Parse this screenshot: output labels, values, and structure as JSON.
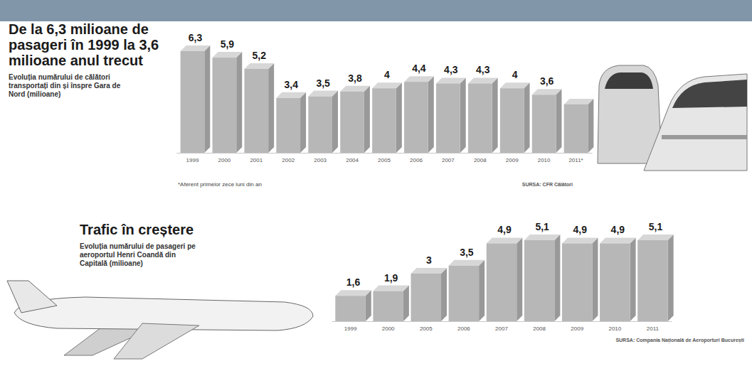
{
  "chart_data": [
    {
      "type": "bar",
      "title": "De la 6,3 milioane de pasageri în 1999 la 3,6 milioane anul trecut",
      "subtitle": "Evoluția numărului de călători transportați din și înspre Gara de Nord (milioane)",
      "note": "*Aferent primelor zece luni din an",
      "source": "SURSA: CFR Călători",
      "categories": [
        "1999",
        "2000",
        "2001",
        "2002",
        "2003",
        "2004",
        "2005",
        "2006",
        "2007",
        "2008",
        "2009",
        "2010",
        "2011*"
      ],
      "values": [
        6.3,
        5.9,
        5.2,
        3.4,
        3.5,
        3.8,
        4,
        4.4,
        4.3,
        4.3,
        4,
        3.6,
        3.0
      ],
      "value_labels": [
        "6,3",
        "5,9",
        "5,2",
        "3,4",
        "3,5",
        "3,8",
        "4",
        "4,4",
        "4,3",
        "4,3",
        "4",
        "3,6",
        null
      ],
      "color": "#b7b7b7",
      "ylim": [
        0,
        6.3
      ],
      "data_labels": true,
      "tick_labels": "x",
      "grid": false
    },
    {
      "type": "bar",
      "title": "Trafic în creștere",
      "subtitle": "Evoluția numărului de pasageri pe aeroportul Henri Coandă din Capitală (milioane)",
      "source": "SURSA: Compania Națională de Aeroporturi București",
      "categories": [
        "1999",
        "2000",
        "2005",
        "2006",
        "2007",
        "2008",
        "2009",
        "2010",
        "2011"
      ],
      "values": [
        1.6,
        1.9,
        3,
        3.5,
        4.9,
        5.1,
        4.9,
        4.9,
        5.1
      ],
      "value_labels": [
        "1,6",
        "1,9",
        "3",
        "3,5",
        "4,9",
        "5,1",
        "4,9",
        "4,9",
        "5,1"
      ],
      "color": "#b7b7b7",
      "ylim": [
        0,
        5.1
      ],
      "data_labels": true,
      "tick_labels": "x",
      "grid": false
    }
  ]
}
